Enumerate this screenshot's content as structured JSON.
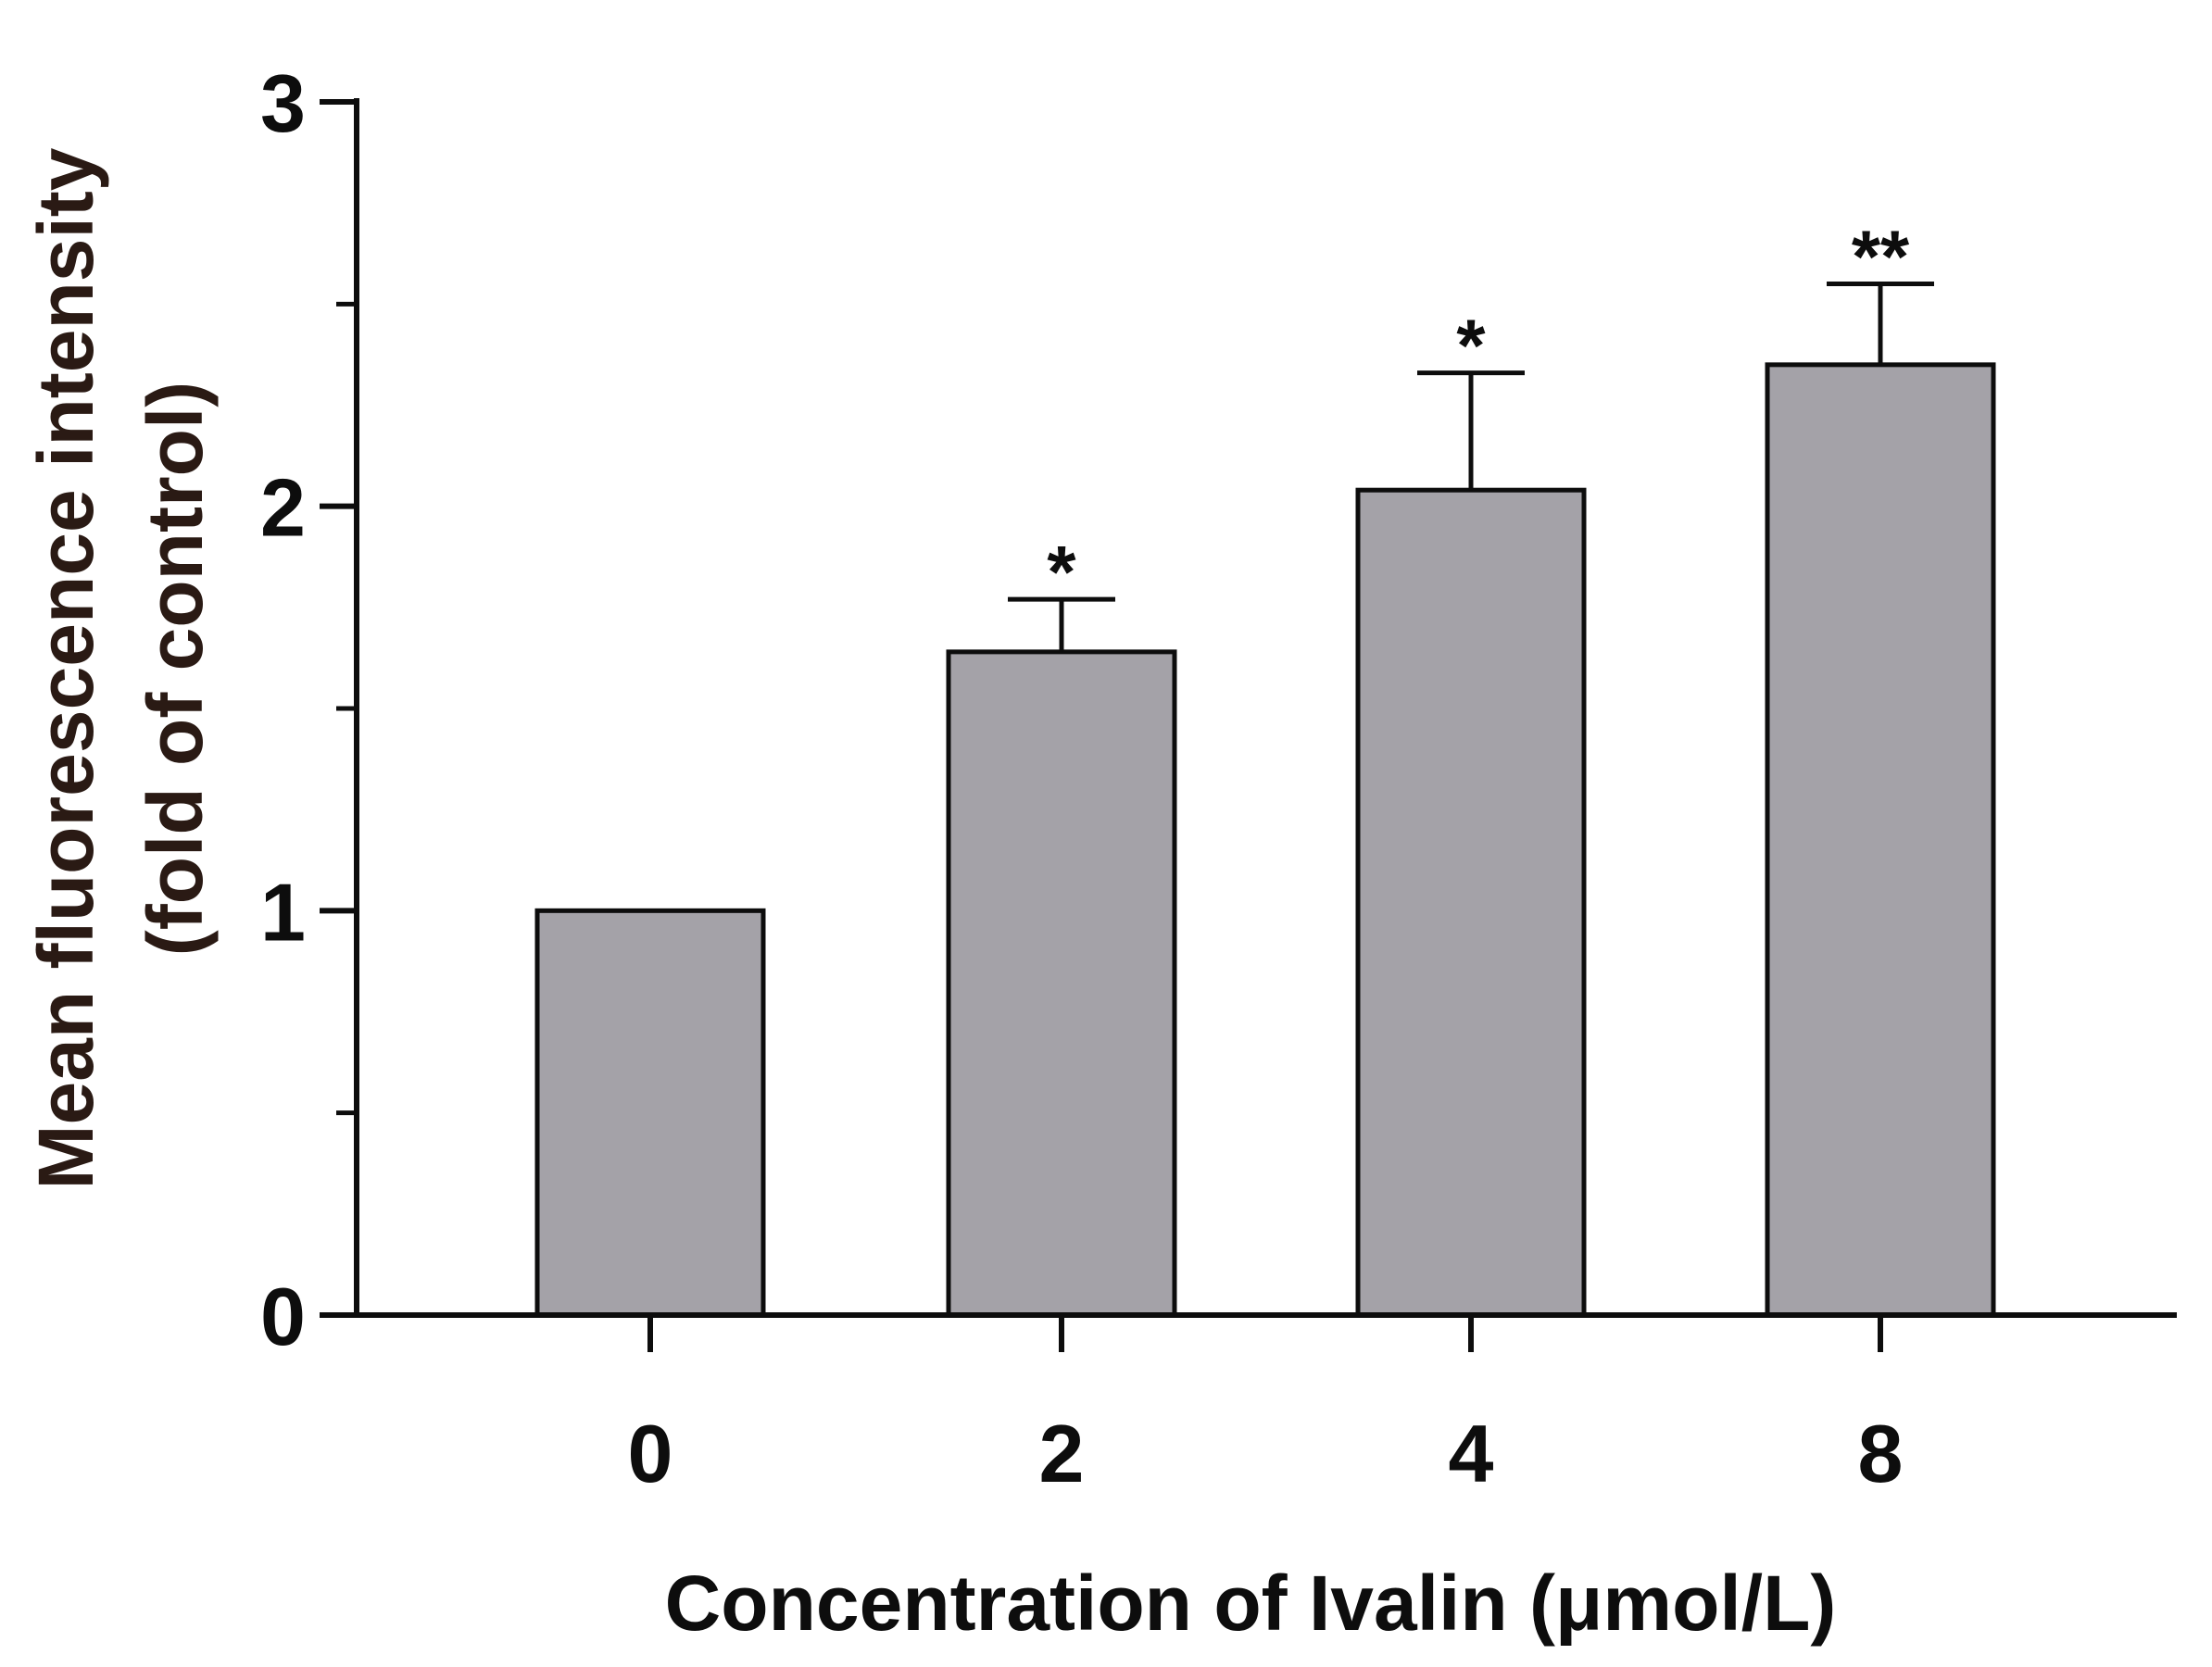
{
  "chart_data": {
    "type": "bar",
    "title": "",
    "xlabel": "Concentration of Ivalin (μmol/L)",
    "ylabel_line1": "Mean fluorescence intensity",
    "ylabel_line2": "(fold of control)",
    "categories": [
      "0",
      "2",
      "4",
      "8"
    ],
    "values": [
      1.0,
      1.64,
      2.04,
      2.35
    ],
    "error_upper": [
      0.0,
      0.13,
      0.29,
      0.2
    ],
    "significance": [
      "",
      "*",
      "*",
      "**"
    ],
    "ylim": [
      0,
      3
    ],
    "yticks": [
      0,
      1,
      2,
      3
    ],
    "ytick_labels": [
      "0",
      "1",
      "2",
      "3"
    ],
    "minor_ytick_values": [
      0.5,
      1.5,
      2.5
    ],
    "grid": false,
    "colors": {
      "bar_fill": "#a4a2a8",
      "bar_edge": "#0d0d0d",
      "axis": "#0d0d0d",
      "ylabel": "#2a1a14",
      "text": "#0d0d0d"
    }
  }
}
